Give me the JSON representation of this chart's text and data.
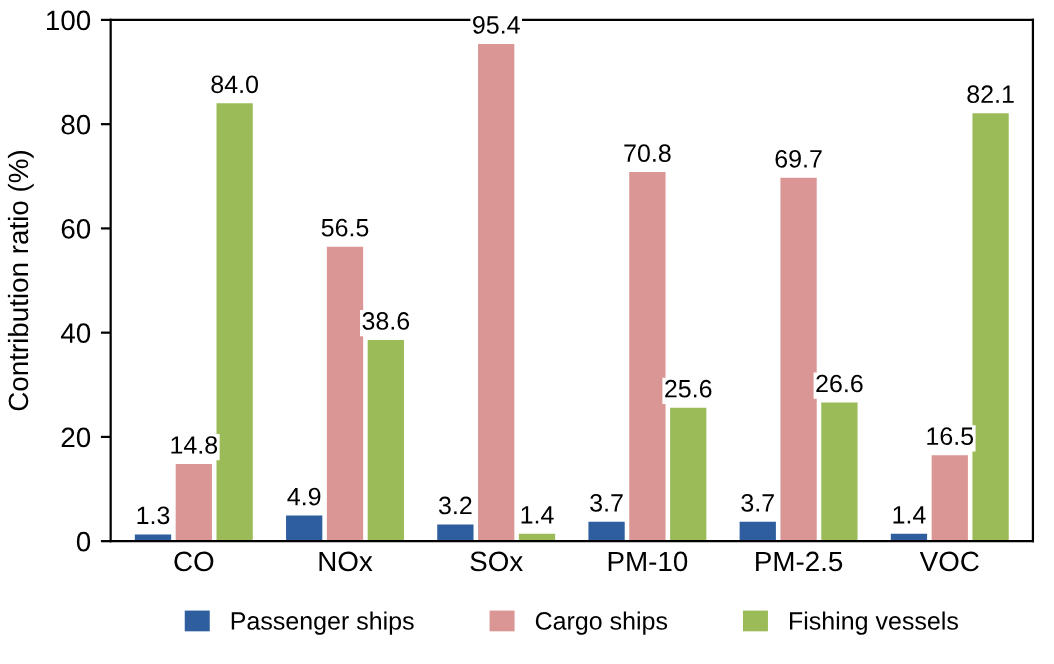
{
  "chart_data": {
    "type": "bar",
    "ylabel": "Contribution ratio (%)",
    "categories": [
      "CO",
      "NOx",
      "SOx",
      "PM-10",
      "PM-2.5",
      "VOC"
    ],
    "series": [
      {
        "name": "Passenger ships",
        "color": "#2e5e9e",
        "values": [
          1.3,
          4.9,
          3.2,
          3.7,
          3.7,
          1.4
        ],
        "value_labels": [
          "1.3",
          "4.9",
          "3.2",
          "3.7",
          "3.7",
          "1.4"
        ]
      },
      {
        "name": "Cargo ships",
        "color": "#d99694",
        "values": [
          14.8,
          56.5,
          95.4,
          70.8,
          69.7,
          16.5
        ],
        "value_labels": [
          "14.8",
          "56.5",
          "95.4",
          "70.8",
          "69.7",
          "16.5"
        ]
      },
      {
        "name": "Fishing vessels",
        "color": "#9bbb59",
        "values": [
          84.0,
          38.6,
          1.4,
          25.6,
          26.6,
          82.1
        ],
        "value_labels": [
          "84.0",
          "38.6",
          "1.4",
          "25.6",
          "26.6",
          "82.1"
        ]
      }
    ],
    "ylim": [
      0,
      100
    ],
    "yticks": [
      0,
      20,
      40,
      60,
      80,
      100
    ],
    "grid": false,
    "legend": "bottom"
  }
}
